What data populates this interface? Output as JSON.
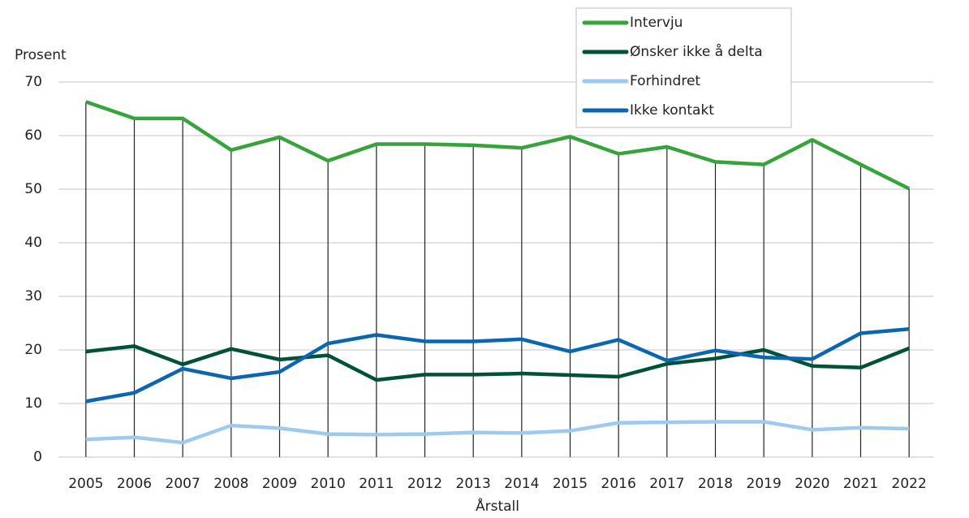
{
  "chart_data": {
    "type": "line",
    "y_label": "Prosent",
    "x_label": "Årstall",
    "categories": [
      "2005",
      "2006",
      "2007",
      "2008",
      "2009",
      "2010",
      "2011",
      "2012",
      "2013",
      "2014",
      "2015",
      "2016",
      "2017",
      "2018",
      "2019",
      "2020",
      "2021",
      "2022"
    ],
    "series": [
      {
        "name": "Intervju",
        "color": "#36a33d",
        "values": [
          66.3,
          63.2,
          63.2,
          57.3,
          59.7,
          55.3,
          58.4,
          58.4,
          58.2,
          57.7,
          59.8,
          56.6,
          57.9,
          55.1,
          54.6,
          59.2,
          54.6,
          50.1
        ]
      },
      {
        "name": "Ønsker ikke å delta",
        "color": "#00513a",
        "values": [
          19.7,
          20.7,
          17.3,
          20.2,
          18.2,
          19.0,
          14.4,
          15.4,
          15.4,
          15.6,
          15.3,
          15.0,
          17.4,
          18.4,
          20.0,
          17.0,
          16.7,
          20.3
        ]
      },
      {
        "name": "Forhindret",
        "color": "#9dcaee",
        "values": [
          3.3,
          3.7,
          2.7,
          5.9,
          5.4,
          4.3,
          4.2,
          4.3,
          4.6,
          4.5,
          4.9,
          6.4,
          6.5,
          6.6,
          6.6,
          5.1,
          5.5,
          5.3
        ]
      },
      {
        "name": "Ikke kontakt",
        "color": "#0b66b2",
        "values": [
          10.4,
          12.0,
          16.5,
          14.7,
          15.9,
          21.2,
          22.8,
          21.6,
          21.6,
          22.0,
          19.7,
          21.9,
          18.0,
          19.9,
          18.6,
          18.3,
          23.1,
          23.9
        ]
      }
    ],
    "ylim": [
      0,
      70
    ],
    "yticks": [
      0,
      10,
      20,
      30,
      40,
      50,
      60,
      70
    ],
    "grid": true,
    "drop_lines": true,
    "legend": "top-right"
  }
}
